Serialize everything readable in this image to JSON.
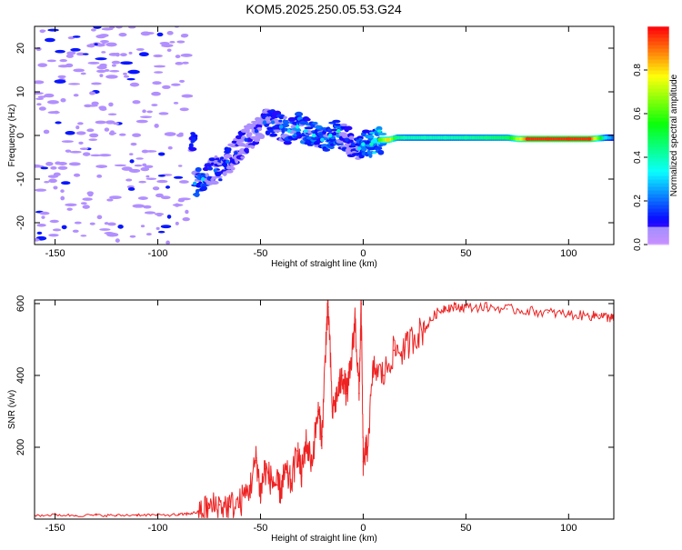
{
  "figure": {
    "title": "KOM5.2025.250.05.53.G24"
  },
  "chart_data": [
    {
      "type": "heatmap",
      "title": "KOM5.2025.250.05.53.G24",
      "xlabel": "Height of straight line (km)",
      "ylabel": "Frequency (Hz)",
      "xlim": [
        -160,
        122
      ],
      "ylim": [
        -25,
        25
      ],
      "x_ticks": [
        -150,
        -100,
        -50,
        0,
        50,
        100
      ],
      "x_tick_labels": [
        "-150",
        "-100",
        "-50",
        "0",
        "50",
        "100"
      ],
      "y_ticks": [
        -20,
        -10,
        0,
        10,
        20
      ],
      "y_tick_labels": [
        "-20",
        "-10",
        "0",
        "10",
        "20"
      ],
      "dominant_frequency_trace": {
        "x": [
          -82,
          -78,
          -72,
          -66,
          -62,
          -57,
          -52,
          -48,
          -44,
          -40,
          -36,
          -32,
          -28,
          -24,
          -20,
          -16,
          -12,
          -8,
          -5,
          -2,
          0,
          4,
          8,
          12,
          16,
          20,
          30,
          40,
          50,
          60,
          70,
          75,
          80,
          90,
          100,
          110,
          118,
          122
        ],
        "y": [
          -11,
          -10,
          -8,
          -6,
          -4,
          -1,
          1,
          3,
          3,
          2,
          1,
          2,
          1,
          0,
          -1,
          0,
          1,
          -1,
          -2,
          -3,
          -2,
          -2,
          -1,
          -1,
          -0.5,
          -0.5,
          -0.5,
          -0.5,
          -0.5,
          -0.5,
          -0.5,
          -0.8,
          -0.8,
          -0.8,
          -0.8,
          -0.8,
          -0.5,
          -0.5
        ],
        "amplitude": [
          0.25,
          0.3,
          0.2,
          0.2,
          0.15,
          0.15,
          0.15,
          0.2,
          0.2,
          0.25,
          0.3,
          0.35,
          0.3,
          0.35,
          0.3,
          0.35,
          0.4,
          0.15,
          0.15,
          0.3,
          0.35,
          0.4,
          0.6,
          0.8,
          0.45,
          0.4,
          0.4,
          0.4,
          0.42,
          0.45,
          0.48,
          0.7,
          0.95,
          0.95,
          0.95,
          0.95,
          0.3,
          0.2
        ]
      },
      "colorbar": {
        "label": "Normalized spectral amplitude",
        "range": [
          0,
          1
        ],
        "ticks": [
          0.0,
          0.2,
          0.4,
          0.6,
          0.8
        ],
        "tick_labels": [
          "0.0",
          "0.2",
          "0.4",
          "0.6",
          "0.8"
        ]
      }
    },
    {
      "type": "line",
      "xlabel": "Height of straight line (km)",
      "ylabel": "SNR (v/v)",
      "xlim": [
        -160,
        122
      ],
      "ylim": [
        0,
        610
      ],
      "x_ticks": [
        -150,
        -100,
        -50,
        0,
        50,
        100
      ],
      "x_tick_labels": [
        "-150",
        "-100",
        "-50",
        "0",
        "50",
        "100"
      ],
      "y_ticks": [
        200,
        400,
        600
      ],
      "y_tick_labels": [
        "200",
        "400",
        "600"
      ],
      "series": [
        {
          "name": "SNR",
          "color": "#ee2222",
          "x": [
            -160,
            -150,
            -140,
            -130,
            -120,
            -110,
            -100,
            -90,
            -85,
            -80,
            -75,
            -70,
            -65,
            -60,
            -55,
            -52,
            -50,
            -48,
            -45,
            -42,
            -40,
            -38,
            -35,
            -32,
            -30,
            -28,
            -25,
            -22,
            -20,
            -18,
            -17,
            -15,
            -12,
            -10,
            -8,
            -6,
            -4,
            -2,
            -1,
            0,
            2,
            5,
            10,
            15,
            20,
            25,
            30,
            35,
            40,
            45,
            50,
            60,
            70,
            80,
            90,
            100,
            110,
            115,
            120,
            122
          ],
          "y": [
            10,
            12,
            10,
            11,
            10,
            12,
            11,
            12,
            15,
            20,
            30,
            40,
            35,
            45,
            90,
            170,
            70,
            140,
            110,
            95,
            80,
            130,
            100,
            190,
            120,
            215,
            160,
            300,
            230,
            520,
            590,
            300,
            360,
            400,
            350,
            420,
            560,
            350,
            600,
            160,
            200,
            420,
            400,
            470,
            470,
            510,
            530,
            570,
            590,
            590,
            590,
            590,
            585,
            580,
            575,
            570,
            565,
            568,
            560,
            560
          ]
        }
      ]
    }
  ]
}
